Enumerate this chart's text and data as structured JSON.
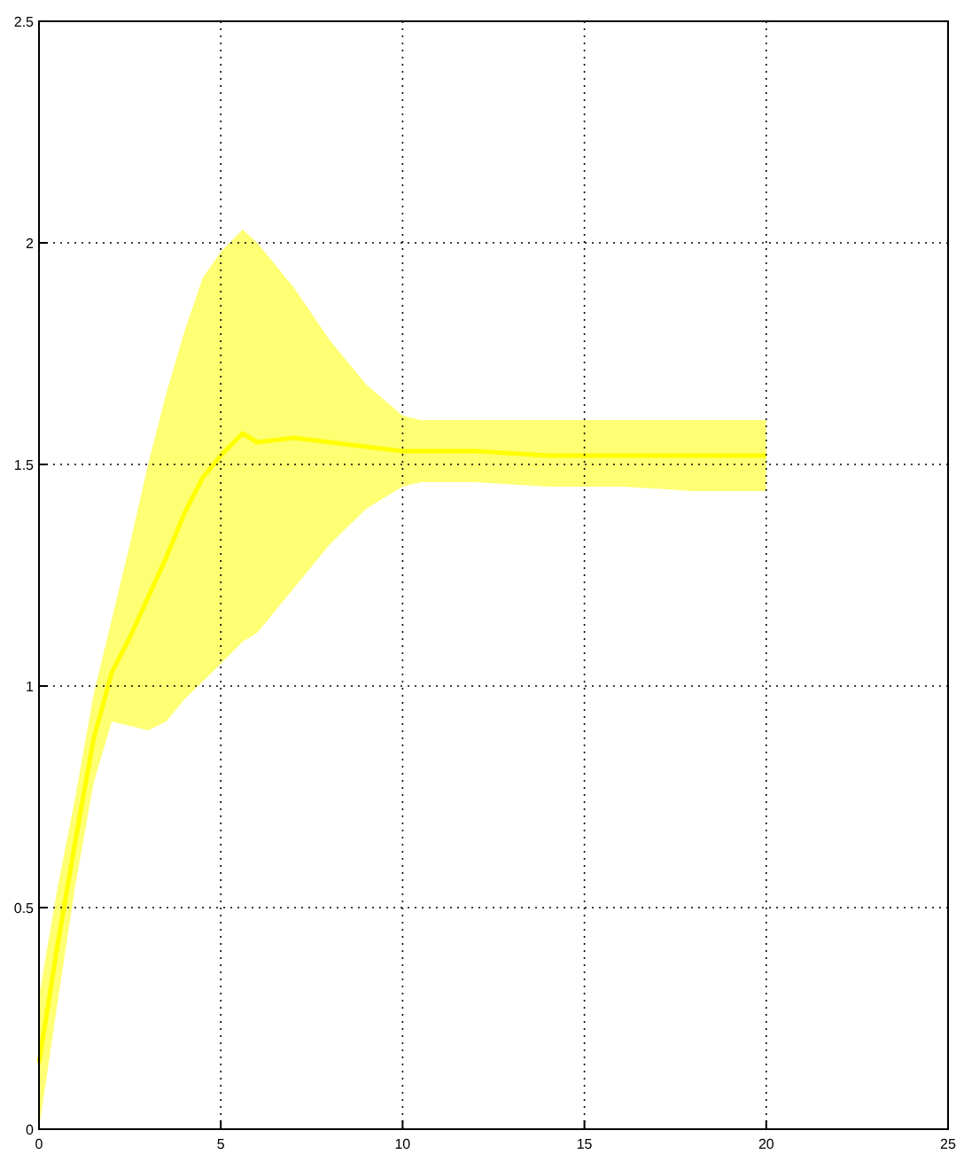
{
  "chart_data": {
    "type": "line",
    "x": [
      0,
      0.5,
      1,
      1.5,
      2,
      2.5,
      3,
      3.5,
      4,
      4.5,
      5,
      5.6,
      6,
      7,
      8,
      9,
      10,
      10.5,
      11,
      12,
      14,
      16,
      18,
      20
    ],
    "series": [
      {
        "color": "#ffff00",
        "values": [
          0.15,
          0.41,
          0.65,
          0.88,
          1.03,
          1.11,
          1.2,
          1.29,
          1.39,
          1.47,
          1.52,
          1.57,
          1.55,
          1.56,
          1.55,
          1.54,
          1.53,
          1.53,
          1.53,
          1.53,
          1.52,
          1.52,
          1.52,
          1.52
        ],
        "lower": [
          0,
          0.28,
          0.55,
          0.78,
          0.92,
          0.91,
          0.9,
          0.92,
          0.97,
          1.01,
          1.05,
          1.1,
          1.12,
          1.22,
          1.32,
          1.4,
          1.45,
          1.46,
          1.46,
          1.46,
          1.45,
          1.45,
          1.44,
          1.44
        ],
        "upper": [
          0.3,
          0.54,
          0.75,
          0.98,
          1.15,
          1.32,
          1.5,
          1.66,
          1.8,
          1.92,
          1.98,
          2.03,
          2.0,
          1.9,
          1.78,
          1.68,
          1.61,
          1.6,
          1.6,
          1.6,
          1.6,
          1.6,
          1.6,
          1.6
        ]
      }
    ],
    "xlim": [
      0,
      25
    ],
    "xticks": [
      0,
      5,
      10,
      15,
      20,
      25
    ],
    "ylim": [
      0,
      2.5
    ],
    "yticks": [
      0,
      0.5,
      1,
      1.5,
      2,
      2.5
    ],
    "grid": true,
    "marker": "none"
  }
}
